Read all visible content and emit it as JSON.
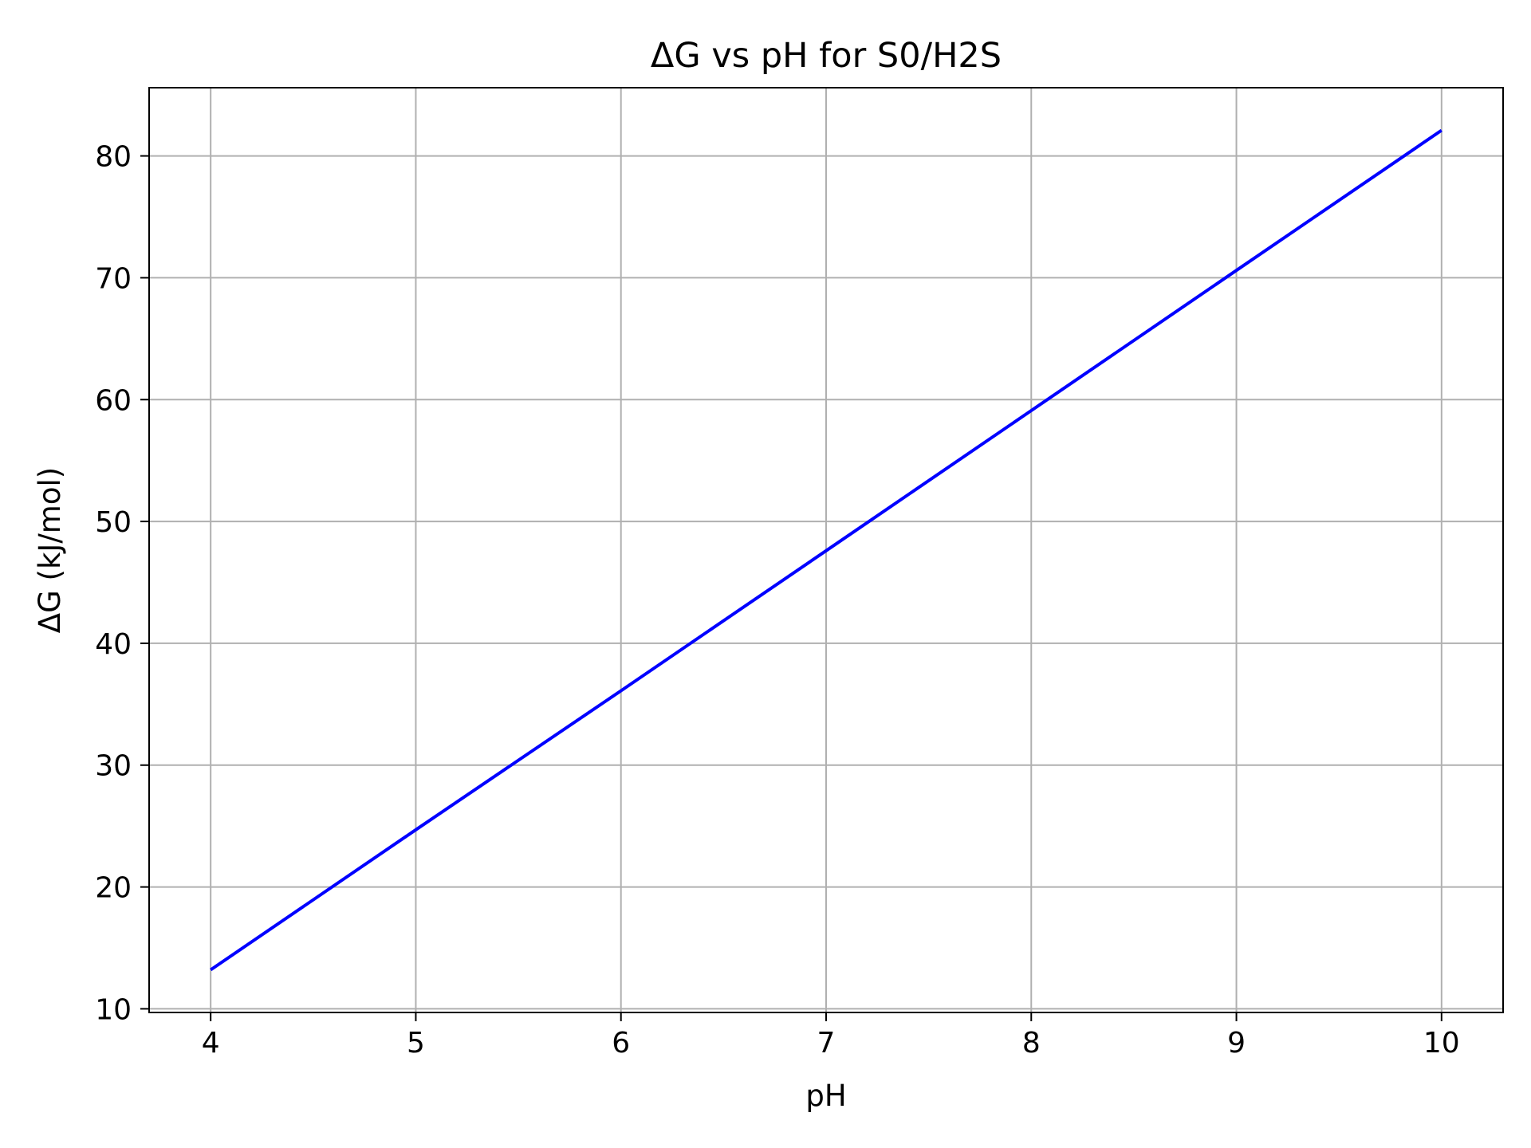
{
  "chart_data": {
    "type": "line",
    "title": "ΔG vs pH for S0/H2S",
    "xlabel": "pH",
    "ylabel": "ΔG (kJ/mol)",
    "xlim": [
      3.7,
      10.3
    ],
    "ylim": [
      9.7,
      85.6
    ],
    "xticks": [
      4,
      5,
      6,
      7,
      8,
      9,
      10
    ],
    "yticks": [
      10,
      20,
      30,
      40,
      50,
      60,
      70,
      80
    ],
    "grid": true,
    "legend": "none",
    "series": [
      {
        "color": "#0000ff",
        "x": [
          4,
          5,
          6,
          7,
          8,
          9,
          10
        ],
        "y": [
          13.2,
          24.7,
          36.1,
          47.6,
          59.1,
          70.6,
          82.1
        ]
      }
    ]
  }
}
